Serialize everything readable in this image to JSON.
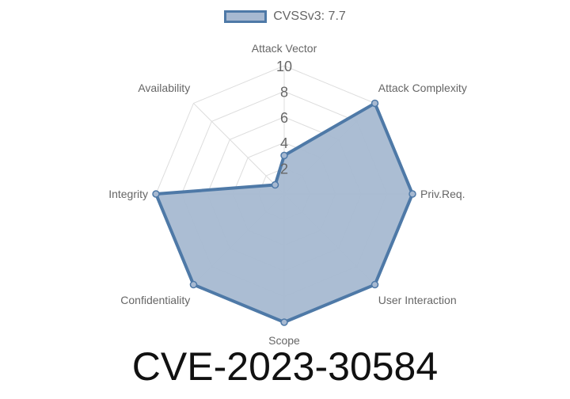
{
  "legend": {
    "label": "CVSSv3: 7.7"
  },
  "title": "CVE-2023-30584",
  "chart_data": {
    "type": "radar",
    "axes": [
      "Attack Vector",
      "Attack Complexity",
      "Priv.Req.",
      "User Interaction",
      "Scope",
      "Confidentiality",
      "Integrity",
      "Availability"
    ],
    "series": [
      {
        "name": "CVSSv3: 7.7",
        "values": [
          3,
          10,
          10,
          10,
          10,
          10,
          10,
          1
        ]
      }
    ],
    "range": [
      0,
      10
    ],
    "ticks": [
      "2",
      "4",
      "6",
      "8",
      "10"
    ],
    "colors": {
      "line": "#4e79a7",
      "fill": "#a7b9d1",
      "grid": "#dddddd",
      "text": "#666666"
    },
    "legend_position": "top"
  }
}
